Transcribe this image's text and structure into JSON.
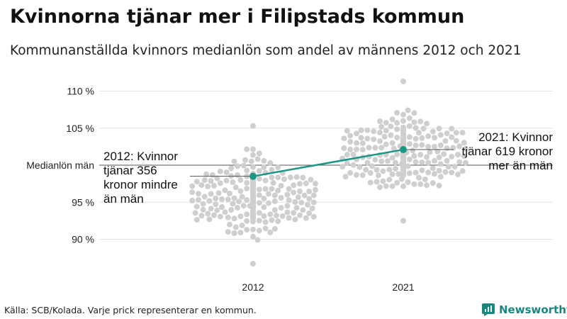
{
  "title": "Kvinnorna tjänar mer i Filipstads kommun",
  "subtitle": "Kommunanställda kvinnors medianlön som andel av männens 2012 och 2021",
  "source": "Källa: SCB/Kolada. Varje prick representerar en kommun.",
  "brand": {
    "name": "Newsworthy",
    "icon": "newsworthy-logo-icon",
    "color": "#17877f"
  },
  "chart_data": {
    "type": "scatter",
    "subtype": "beeswarm",
    "categories": [
      "2012",
      "2021"
    ],
    "y_unit": "%",
    "ylim": [
      86,
      112
    ],
    "y_ticks": [
      90,
      95,
      105,
      110
    ],
    "y_tick_labels": [
      "90 %",
      "95 %",
      "105 %",
      "110 %"
    ],
    "reference_line": {
      "value": 100,
      "label": "Medianlön män"
    },
    "grid": true,
    "dot_color": "#cfcfcf",
    "highlight_color": "#1a9785",
    "highlight": [
      {
        "category": "2012",
        "value": 98.5
      },
      {
        "category": "2021",
        "value": 102.1
      }
    ],
    "annotations": [
      {
        "category": "2012",
        "lines": [
          "2012: Kvinnor",
          "tjänar 356",
          "kronor mindre",
          "än män"
        ]
      },
      {
        "category": "2021",
        "lines": [
          "2021: Kvinnor",
          "tjänar 619 kronor",
          "mer än män"
        ]
      }
    ],
    "distribution_note": "one dot per municipality",
    "distributions": {
      "2012": {
        "min": 86.7,
        "max": 105.3,
        "center": 95.8,
        "spread": 2.3,
        "count": 290
      },
      "2021": {
        "min": 92.5,
        "max": 111.3,
        "center": 101.5,
        "spread": 2.3,
        "count": 290
      }
    }
  }
}
